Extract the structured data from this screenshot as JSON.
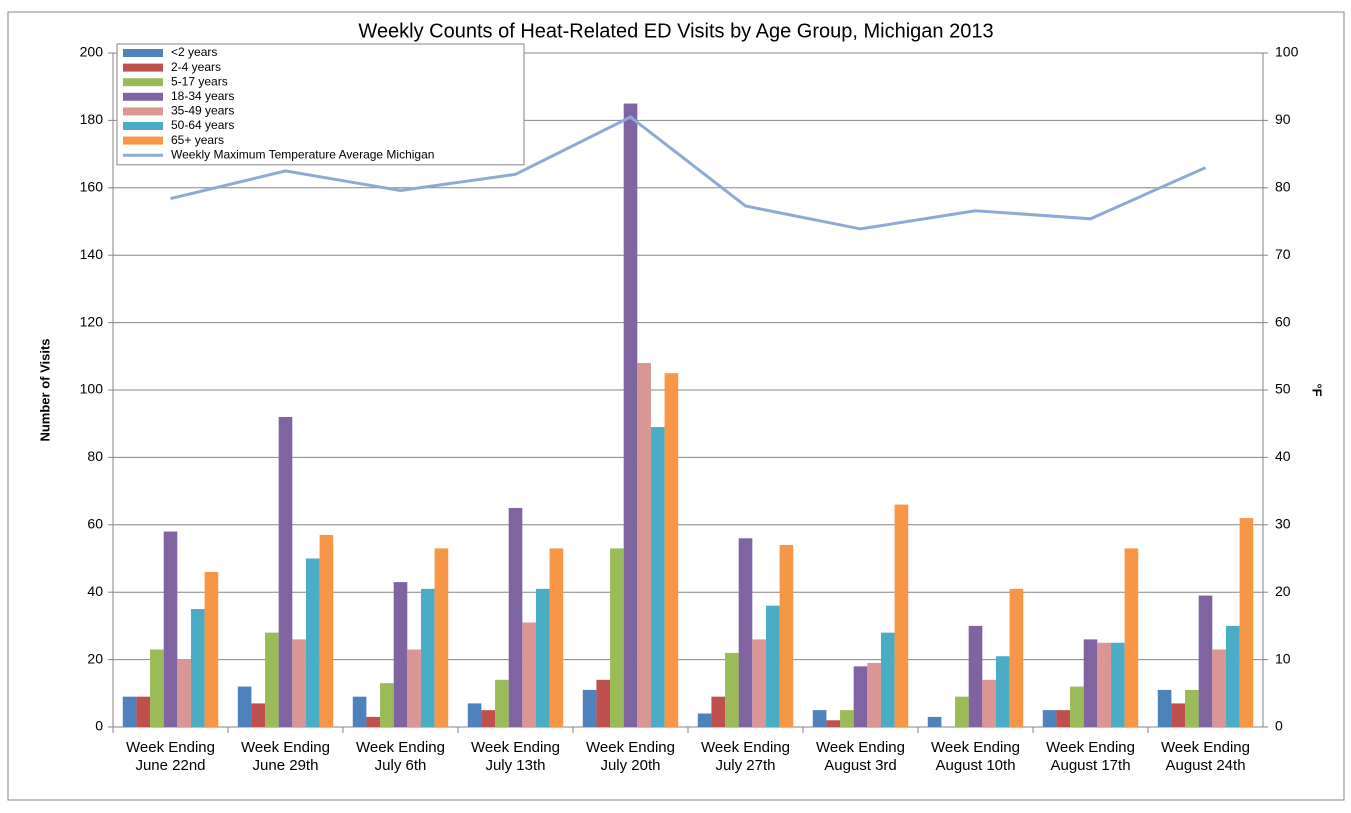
{
  "chart_data": {
    "type": "bar",
    "title": "Weekly Counts of Heat-Related ED Visits by Age Group, Michigan 2013",
    "y_label": "Number of Visits",
    "y2_label": "°F",
    "categories": [
      "Week Ending June 22nd",
      "Week Ending June 29th",
      "Week Ending July 6th",
      "Week Ending July 13th",
      "Week Ending July 20th",
      "Week Ending July 27th",
      "Week Ending August 3rd",
      "Week Ending August 10th",
      "Week Ending August 17th",
      "Week Ending August 24th"
    ],
    "series": [
      {
        "name": "<2 years",
        "color": "#4f81bd",
        "values": [
          9,
          12,
          9,
          7,
          11,
          4,
          5,
          3,
          5,
          11
        ]
      },
      {
        "name": "2-4 years",
        "color": "#c0504d",
        "values": [
          9,
          7,
          3,
          5,
          14,
          9,
          2,
          0,
          5,
          7
        ]
      },
      {
        "name": "5-17 years",
        "color": "#9bbb59",
        "values": [
          23,
          28,
          13,
          14,
          53,
          22,
          5,
          9,
          12,
          11
        ]
      },
      {
        "name": "18-34 years",
        "color": "#8064a2",
        "values": [
          58,
          92,
          43,
          65,
          185,
          56,
          18,
          30,
          26,
          39
        ]
      },
      {
        "name": "35-49 years",
        "color": "#d99694",
        "values": [
          20,
          26,
          23,
          31,
          108,
          26,
          19,
          14,
          25,
          23
        ]
      },
      {
        "name": "50-64 years",
        "color": "#4bacc6",
        "values": [
          35,
          50,
          41,
          41,
          89,
          36,
          28,
          21,
          25,
          30
        ]
      },
      {
        "name": "65+ years",
        "color": "#f79646",
        "values": [
          46,
          57,
          53,
          53,
          105,
          54,
          66,
          41,
          53,
          62
        ]
      },
      {
        "name": "Weekly Maximum Temperature Average Michigan",
        "color": "#8eaad4",
        "type": "line",
        "axis": "y2",
        "values": [
          78.4,
          82.5,
          79.6,
          82,
          90.5,
          77.3,
          73.9,
          76.6,
          75.4,
          83
        ]
      }
    ],
    "ylim": [
      0,
      200
    ],
    "yticks": [
      0,
      20,
      40,
      60,
      80,
      100,
      120,
      140,
      160,
      180,
      200
    ],
    "y2lim": [
      0,
      100
    ],
    "y2ticks": [
      0,
      10,
      20,
      30,
      40,
      50,
      60,
      70,
      80,
      90,
      100
    ],
    "grid": true,
    "legend": "top-left"
  }
}
